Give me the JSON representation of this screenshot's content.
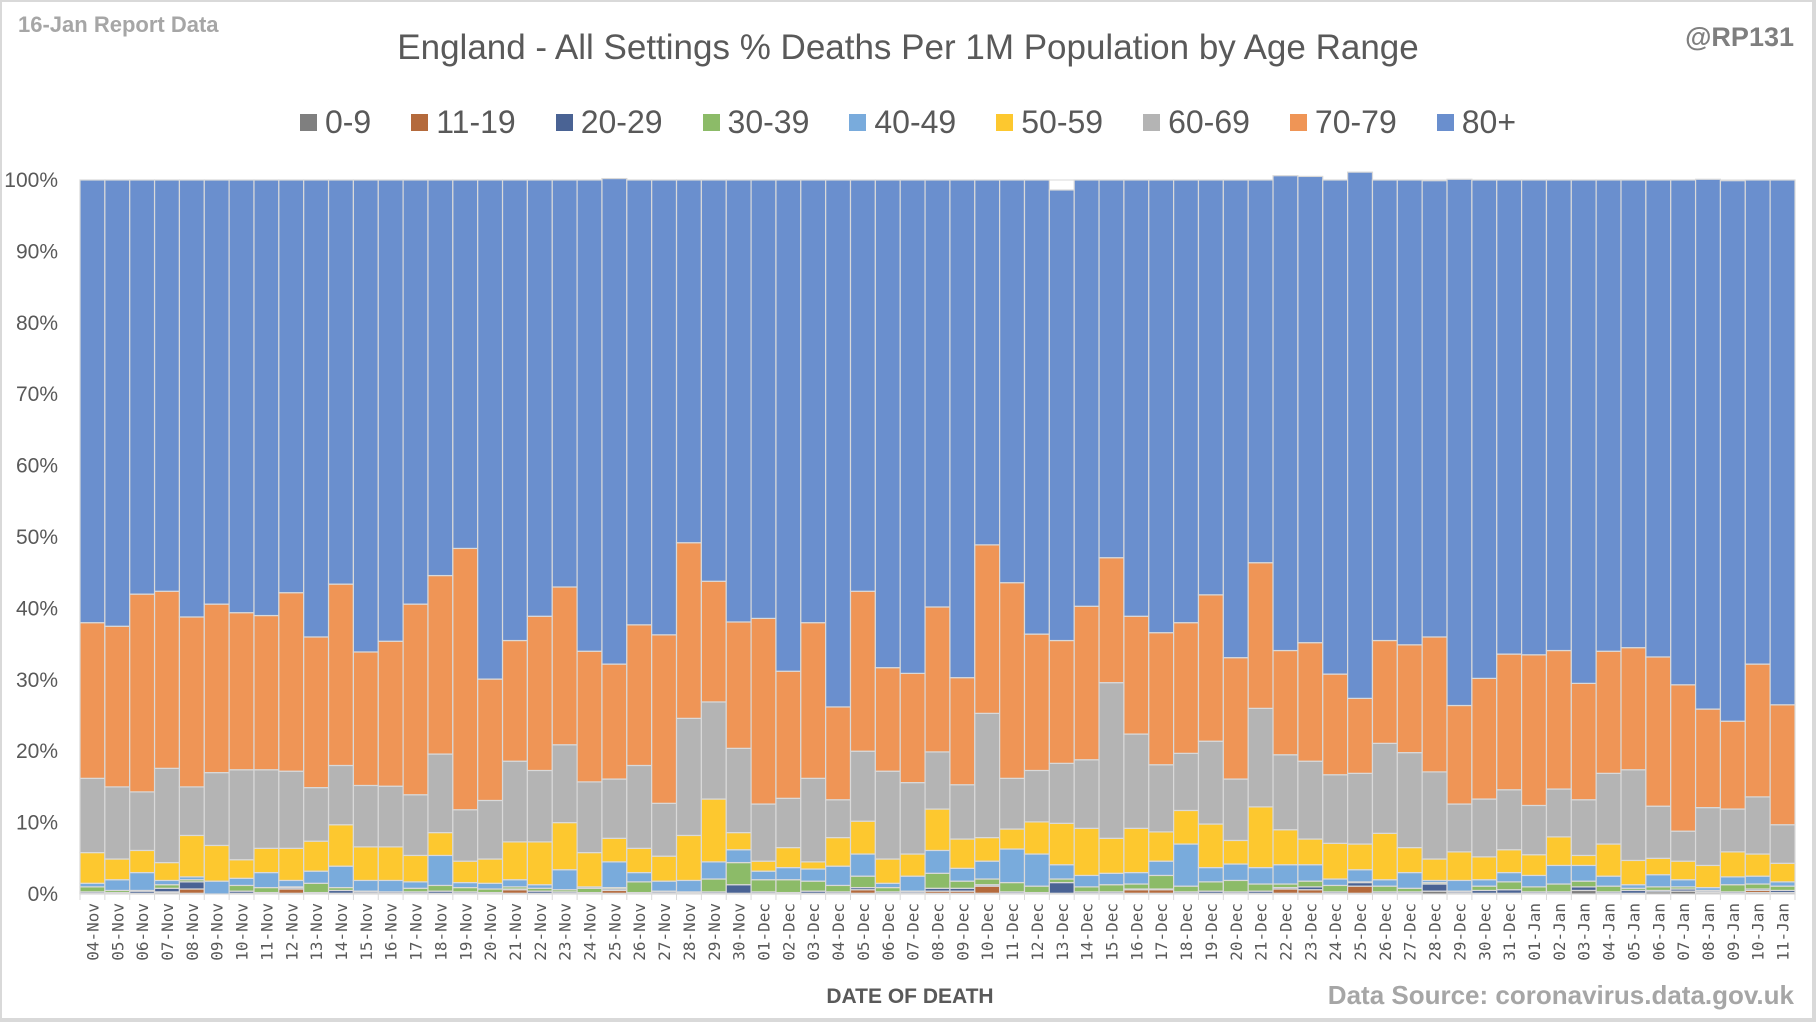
{
  "header": {
    "report_label": "16-Jan Report Data",
    "handle": "@RP131",
    "source": "Data Source: coronavirus.data.gov.uk"
  },
  "chart_data": {
    "type": "bar",
    "stacked": "percent",
    "title": "England - All Settings % Deaths Per 1M Population by Age Range",
    "xlabel": "DATE OF DEATH",
    "ylabel": "",
    "ylim": [
      0,
      100
    ],
    "yticks": [
      "0%",
      "10%",
      "20%",
      "30%",
      "40%",
      "50%",
      "60%",
      "70%",
      "80%",
      "90%",
      "100%"
    ],
    "legend_position": "top",
    "grid": true,
    "categories": [
      "04-Nov",
      "05-Nov",
      "06-Nov",
      "07-Nov",
      "08-Nov",
      "09-Nov",
      "10-Nov",
      "11-Nov",
      "12-Nov",
      "13-Nov",
      "14-Nov",
      "15-Nov",
      "16-Nov",
      "17-Nov",
      "18-Nov",
      "19-Nov",
      "20-Nov",
      "21-Nov",
      "22-Nov",
      "23-Nov",
      "24-Nov",
      "25-Nov",
      "26-Nov",
      "27-Nov",
      "28-Nov",
      "29-Nov",
      "30-Nov",
      "01-Dec",
      "02-Dec",
      "03-Dec",
      "04-Dec",
      "05-Dec",
      "06-Dec",
      "07-Dec",
      "08-Dec",
      "09-Dec",
      "10-Dec",
      "11-Dec",
      "12-Dec",
      "13-Dec",
      "14-Dec",
      "15-Dec",
      "16-Dec",
      "17-Dec",
      "18-Dec",
      "19-Dec",
      "20-Dec",
      "21-Dec",
      "22-Dec",
      "23-Dec",
      "24-Dec",
      "25-Dec",
      "26-Dec",
      "27-Dec",
      "28-Dec",
      "29-Dec",
      "30-Dec",
      "31-Dec",
      "01-Jan",
      "02-Jan",
      "03-Jan",
      "04-Jan",
      "05-Jan",
      "06-Jan",
      "07-Jan",
      "08-Jan",
      "09-Jan",
      "10-Jan",
      "11-Jan"
    ],
    "series": [
      {
        "name": "0-9",
        "color": "#7f7f7f",
        "values": [
          0.1,
          0.1,
          0.1,
          0.2,
          0.1,
          0,
          0.1,
          0.1,
          0.1,
          0.1,
          0.1,
          0.1,
          0.1,
          0.1,
          0.1,
          0.1,
          0.1,
          0.1,
          0.1,
          0.1,
          0.1,
          0.1,
          0.1,
          0.1,
          0.1,
          0.1,
          0.1,
          0.1,
          0.1,
          0.1,
          0.1,
          0.1,
          0.1,
          0.1,
          0.1,
          0.1,
          0.1,
          0.1,
          0.1,
          0.1,
          0.1,
          0.1,
          0.1,
          0.1,
          0.1,
          0.1,
          0.1,
          0.1,
          0.1,
          0.1,
          0.1,
          0.1,
          0.1,
          0.1,
          0.4,
          0.1,
          0.1,
          0.1,
          0.1,
          0.1,
          0.5,
          0.1,
          0.1,
          0.3,
          0.4,
          0.2,
          0.1,
          0.2,
          0.2
        ]
      },
      {
        "name": "11-19",
        "color": "#b46a3c",
        "values": [
          0,
          0,
          0,
          0.1,
          0.6,
          0,
          0,
          0,
          0.6,
          0,
          0,
          0,
          0,
          0,
          0,
          0,
          0,
          0.5,
          0,
          0,
          0,
          0.4,
          0,
          0,
          0,
          0,
          0,
          0,
          0,
          0,
          0,
          0.5,
          0,
          0,
          0.3,
          0.3,
          1.0,
          0,
          0,
          0,
          0,
          0,
          0.5,
          0.5,
          0,
          0,
          0,
          0,
          0.6,
          0.5,
          0,
          1.0,
          0,
          0,
          0,
          0,
          0,
          0,
          0,
          0,
          0,
          0,
          0,
          0,
          0,
          0,
          0,
          0.3,
          0
        ]
      },
      {
        "name": "20-29",
        "color": "#4a6394",
        "values": [
          0.2,
          0.1,
          0.3,
          0.5,
          1.0,
          0,
          0.3,
          0.1,
          0.2,
          0.1,
          0.4,
          0.2,
          0.2,
          0.2,
          0.3,
          0.2,
          0.1,
          0.1,
          0.3,
          0.2,
          0.1,
          0.2,
          0.1,
          0.2,
          0.1,
          0.2,
          1.2,
          0.2,
          0.1,
          0.3,
          0.2,
          0.3,
          0.2,
          0.2,
          0.4,
          0.4,
          0.2,
          0.2,
          0.1,
          1.5,
          0.2,
          0.2,
          0.1,
          0.1,
          0.2,
          0.3,
          0.2,
          0.3,
          0.2,
          0.4,
          0.2,
          0.5,
          0.2,
          0.2,
          1.0,
          0.2,
          0.4,
          0.5,
          0.2,
          0.2,
          0.5,
          0.2,
          0.4,
          0.2,
          0.3,
          0.2,
          0.2,
          0.2,
          0.3
        ]
      },
      {
        "name": "30-39",
        "color": "#8cbb68",
        "values": [
          0.7,
          0.3,
          0.1,
          0.5,
          0.3,
          0,
          0.8,
          0.7,
          0.1,
          1.3,
          0.4,
          0.1,
          0,
          0.5,
          0.8,
          0.6,
          0.5,
          0.3,
          0.4,
          0.3,
          0.6,
          0.2,
          1.5,
          0.1,
          0.1,
          1.8,
          3.1,
          1.7,
          1.8,
          1.4,
          0.9,
          1.6,
          0.6,
          0.1,
          2.1,
          1.0,
          0.8,
          1.3,
          0.9,
          0.5,
          0.7,
          1.0,
          0.7,
          1.9,
          0.8,
          1.3,
          1.6,
          1.0,
          0.5,
          0.8,
          0.9,
          0.1,
          0.8,
          0.5,
          0.2,
          0.1,
          0.6,
          1.1,
          0.7,
          1.1,
          0.8,
          0.8,
          0.3,
          0.5,
          0.3,
          0.1,
          1.0,
          0.7,
          0.6
        ]
      },
      {
        "name": "40-49",
        "color": "#79abdc",
        "values": [
          0.5,
          1.5,
          2.5,
          0.6,
          0.4,
          1.8,
          1.0,
          2.1,
          0.9,
          1.7,
          3.0,
          1.5,
          1.6,
          0.9,
          4.2,
          0.7,
          0.8,
          1.0,
          0.5,
          2.8,
          0.2,
          3.6,
          1.3,
          1.4,
          1.6,
          2.4,
          1.8,
          1.2,
          1.7,
          1.7,
          2.7,
          3.1,
          0.6,
          2.1,
          3.2,
          1.8,
          2.5,
          4.7,
          4.5,
          2.0,
          1.6,
          1.6,
          1.6,
          2.0,
          5.9,
          2.0,
          2.3,
          2.3,
          2.7,
          2.3,
          0.9,
          1.7,
          0.9,
          2.2,
          0.3,
          1.5,
          0.9,
          1.3,
          1.6,
          2.6,
          2.2,
          1.4,
          0.5,
          1.7,
          1.0,
          0.4,
          1.1,
          1.1,
          0.6
        ]
      },
      {
        "name": "50-59",
        "color": "#fdc82f",
        "values": [
          4.3,
          2.9,
          3.1,
          2.5,
          5.8,
          5.0,
          2.6,
          3.4,
          4.5,
          4.2,
          5.8,
          4.7,
          4.7,
          3.7,
          3.2,
          3.0,
          3.4,
          5.3,
          6.0,
          6.6,
          4.8,
          3.3,
          3.4,
          3.5,
          6.3,
          8.8,
          2.4,
          1.4,
          2.8,
          1.0,
          4.0,
          4.6,
          3.4,
          3.1,
          5.8,
          4.1,
          3.3,
          2.8,
          4.5,
          5.8,
          6.6,
          4.9,
          6.2,
          4.1,
          4.7,
          6.1,
          3.3,
          8.5,
          4.9,
          3.6,
          5.0,
          3.6,
          6.5,
          3.5,
          3.0,
          4.0,
          3.2,
          3.2,
          2.9,
          4.0,
          1.4,
          4.5,
          3.4,
          2.3,
          2.6,
          3.1,
          3.5,
          3.1,
          2.6
        ]
      },
      {
        "name": "60-69",
        "color": "#b4b4b4",
        "values": [
          10.4,
          10.1,
          8.2,
          13.2,
          6.8,
          10.2,
          12.6,
          11.0,
          10.8,
          7.5,
          8.3,
          8.6,
          8.5,
          8.5,
          11.0,
          7.2,
          8.2,
          11.3,
          10.0,
          10.9,
          9.9,
          8.3,
          11.6,
          7.4,
          16.4,
          13.6,
          11.8,
          8.0,
          6.9,
          11.7,
          5.3,
          9.8,
          12.3,
          10.0,
          8.0,
          7.6,
          17.4,
          7.1,
          7.2,
          8.4,
          9.6,
          21.8,
          13.2,
          9.4,
          8.0,
          11.6,
          8.6,
          13.8,
          10.5,
          10.9,
          9.6,
          9.9,
          12.6,
          13.3,
          12.2,
          6.7,
          8.1,
          8.4,
          6.9,
          6.7,
          7.8,
          9.9,
          12.7,
          7.3,
          4.2,
          8.1,
          6.0,
          8.0,
          5.4
        ]
      },
      {
        "name": "70-79",
        "color": "#ef9556",
        "values": [
          21.8,
          22.5,
          27.7,
          24.8,
          23.8,
          23.6,
          22.0,
          21.6,
          25.0,
          21.1,
          25.4,
          18.7,
          20.3,
          26.7,
          25.0,
          36.6,
          17.0,
          16.9,
          21.6,
          22.1,
          18.3,
          16.1,
          19.7,
          23.6,
          24.6,
          16.9,
          17.7,
          26.0,
          17.8,
          21.8,
          13.0,
          22.4,
          14.5,
          15.3,
          20.3,
          15.0,
          23.6,
          27.4,
          19.1,
          17.2,
          21.5,
          17.5,
          16.5,
          18.5,
          18.3,
          20.5,
          17.0,
          20.4,
          14.6,
          16.6,
          14.1,
          10.5,
          14.4,
          15.1,
          18.9,
          13.8,
          16.9,
          19.0,
          21.1,
          19.4,
          16.3,
          17.1,
          17.1,
          20.9,
          20.5,
          13.8,
          12.3,
          18.6,
          16.8
        ]
      },
      {
        "name": "80+",
        "color": "#6a8fce",
        "values": [
          62.0,
          62.5,
          58.0,
          57.6,
          61.2,
          59.4,
          60.6,
          61.0,
          57.8,
          64.0,
          56.6,
          66.1,
          64.6,
          59.4,
          55.4,
          51.6,
          69.9,
          64.5,
          61.1,
          57.0,
          66.0,
          68.0,
          62.3,
          63.7,
          50.8,
          56.2,
          61.9,
          61.4,
          68.8,
          62.0,
          73.8,
          57.6,
          68.3,
          69.1,
          59.8,
          69.7,
          51.1,
          56.4,
          63.6,
          63.1,
          59.7,
          52.9,
          61.1,
          63.4,
          62.0,
          58.1,
          66.9,
          53.6,
          66.5,
          65.3,
          69.2,
          73.7,
          64.5,
          65.1,
          63.9,
          73.7,
          69.8,
          66.4,
          66.5,
          65.9,
          70.5,
          66.0,
          65.5,
          66.8,
          70.7,
          74.2,
          75.7,
          67.8,
          73.5
        ]
      }
    ]
  }
}
